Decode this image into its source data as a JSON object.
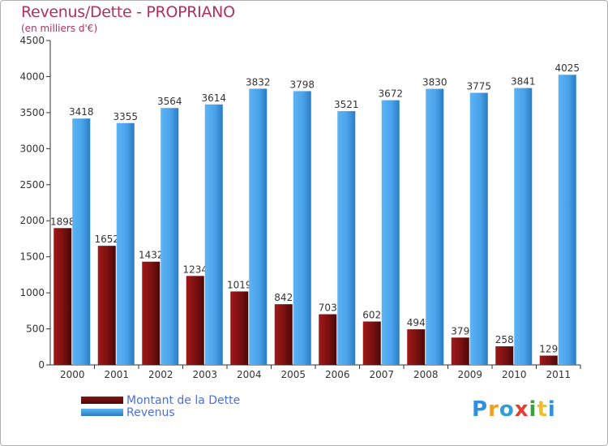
{
  "chart_data": {
    "type": "bar",
    "title": "Revenus/Dette - PROPRIANO",
    "subtitle": "(en milliers d'€)",
    "categories": [
      "2000",
      "2001",
      "2002",
      "2003",
      "2004",
      "2005",
      "2006",
      "2007",
      "2008",
      "2009",
      "2010",
      "2011"
    ],
    "series": [
      {
        "name": "Montant de la Dette",
        "color": "#7a1010",
        "values": [
          1898,
          1652,
          1432,
          1234,
          1019,
          842,
          703,
          602,
          494,
          379,
          258,
          129
        ]
      },
      {
        "name": "Revenus",
        "color": "#4aa3ea",
        "values": [
          3418,
          3355,
          3564,
          3614,
          3832,
          3798,
          3521,
          3672,
          3830,
          3775,
          3841,
          4025
        ]
      }
    ],
    "yticks": [
      0,
      500,
      1000,
      1500,
      2000,
      2500,
      3000,
      3500,
      4000,
      4500
    ],
    "ylim": [
      0,
      4500
    ],
    "grid": false,
    "legend_position": "bottom-left"
  },
  "brand": {
    "logo_letters": [
      "P",
      "r",
      "o",
      "x",
      "i",
      "t",
      "i"
    ],
    "logo_colors": [
      "#2f8fe0",
      "#f0a020",
      "#2fa0d0",
      "#e04030",
      "#3aa040",
      "#f0c020",
      "#2f8fe0"
    ]
  }
}
